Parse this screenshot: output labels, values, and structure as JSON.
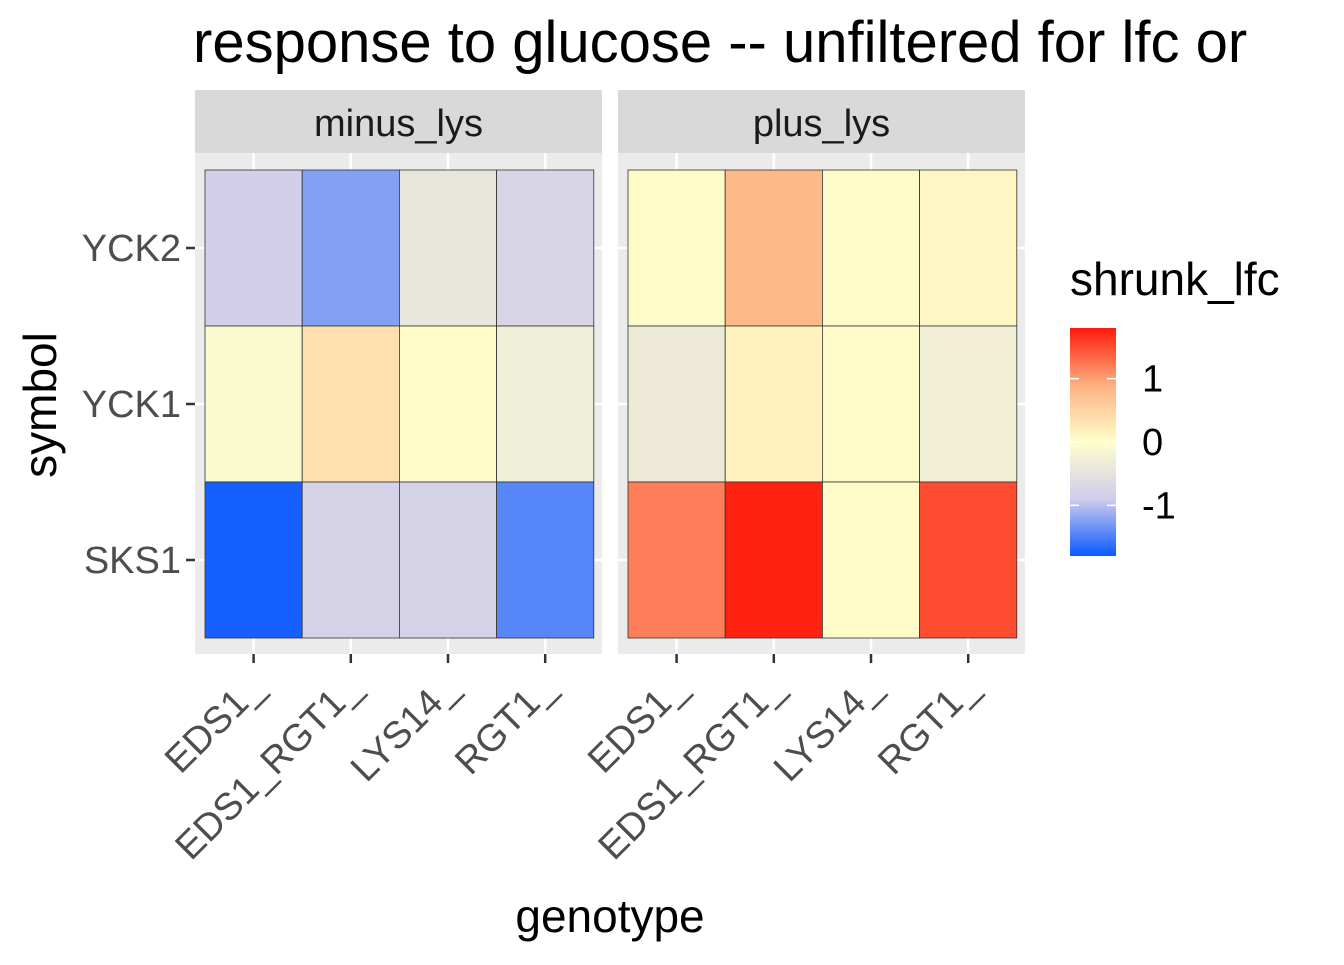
{
  "chart_data": {
    "type": "heatmap",
    "title": "response to glucose -- unfiltered for lfc or",
    "xlabel": "genotype",
    "ylabel": "symbol",
    "facets": [
      "minus_lys",
      "plus_lys"
    ],
    "x_categories": [
      "EDS1_",
      "EDS1_RGT1_",
      "LYS14_",
      "RGT1_"
    ],
    "y_categories": [
      "YCK2",
      "YCK1",
      "SKS1"
    ],
    "values": {
      "minus_lys": [
        [
          -0.85,
          -1.25,
          -0.45,
          -0.75
        ],
        [
          -0.08,
          0.35,
          0.05,
          -0.3
        ],
        [
          -1.75,
          -0.8,
          -0.8,
          -1.45
        ]
      ],
      "plus_lys": [
        [
          0.05,
          0.8,
          0.05,
          0.1
        ],
        [
          -0.35,
          0.15,
          0.05,
          -0.28
        ],
        [
          1.2,
          1.75,
          0.05,
          1.5
        ]
      ]
    },
    "legend": {
      "title": "shrunk_lfc",
      "ticks": [
        1,
        0,
        -1
      ],
      "tick_labels": [
        "1",
        "0",
        "-1"
      ],
      "range": [
        -1.8,
        1.8
      ],
      "placement": "right"
    },
    "colors": {
      "low": "#0a5aff",
      "mid_low": "#d0ccec",
      "mid": "#ffffcc",
      "mid_high": "#fdb080",
      "high": "#ff1a0a"
    },
    "panel_background": "#ebebeb",
    "strip_background": "#d9d9d9",
    "grid": true
  }
}
